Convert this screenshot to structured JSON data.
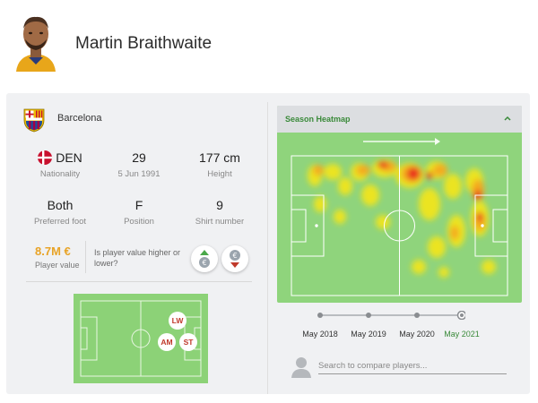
{
  "player": {
    "name": "Martin Braithwaite"
  },
  "club": {
    "name": "Barcelona",
    "colors": {
      "blue": "#1c4e9c",
      "red": "#a50044",
      "gold": "#edbb00"
    }
  },
  "stats": {
    "nationality": {
      "value": "DEN",
      "label": "Nationality",
      "flag_color": "#c8102e"
    },
    "age": {
      "value": "29",
      "label": "5 Jun 1991"
    },
    "height": {
      "value": "177 cm",
      "label": "Height"
    },
    "foot": {
      "value": "Both",
      "label": "Preferred foot"
    },
    "position": {
      "value": "F",
      "label": "Position"
    },
    "shirt": {
      "value": "9",
      "label": "Shirt number"
    }
  },
  "player_value": {
    "value": "8.7M €",
    "label": "Player value",
    "question": "Is player value higher or lower?",
    "higher_icon": "arrow-up-euro-icon",
    "lower_icon": "arrow-down-euro-icon"
  },
  "positions": [
    {
      "code": "LW"
    },
    {
      "code": "AM"
    },
    {
      "code": "ST"
    }
  ],
  "heatmap": {
    "title": "Season Heatmap",
    "collapse_icon": "chevron-up-icon",
    "direction_icon": "arrow-right-icon"
  },
  "timeline": {
    "labels": [
      "May 2018",
      "May 2019",
      "May 2020",
      "May 2021"
    ],
    "active_index": 3
  },
  "compare": {
    "placeholder": "Search to compare players..."
  },
  "accent": "#3a8a3a",
  "value_color": "#e8a326"
}
